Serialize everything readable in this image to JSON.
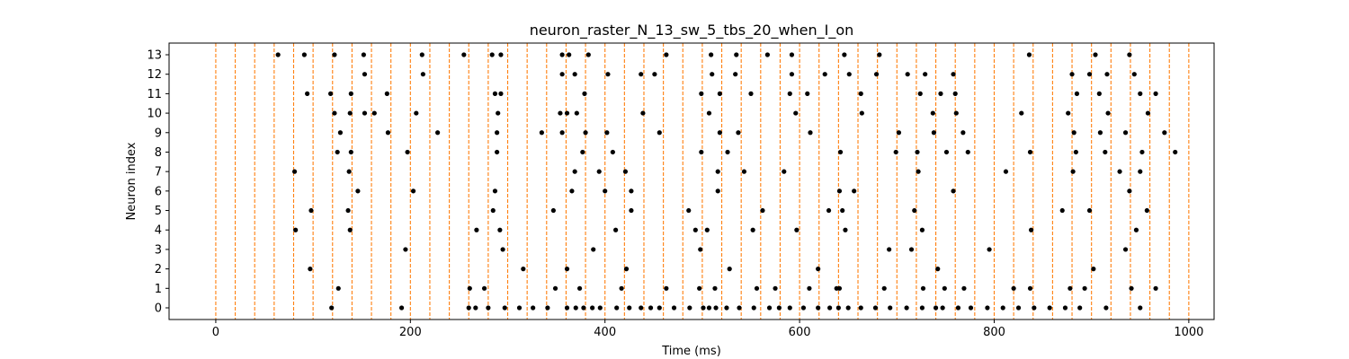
{
  "chart_data": {
    "type": "scatter",
    "title": "neuron_raster_N_13_sw_5_tbs_20_when_I_on",
    "xlabel": "Time (ms)",
    "ylabel": "Neuron index",
    "xlim": [
      -48,
      1026
    ],
    "ylim": [
      -0.6,
      13.6
    ],
    "xticks": [
      0,
      200,
      400,
      600,
      800,
      1000
    ],
    "yticks": [
      0,
      1,
      2,
      3,
      4,
      5,
      6,
      7,
      8,
      9,
      10,
      11,
      12,
      13
    ],
    "grid": false,
    "marker_color": "#000000",
    "vline_color": "#ff7f0e",
    "vlines": [
      0,
      20,
      40,
      60,
      80,
      100,
      120,
      140,
      160,
      180,
      200,
      220,
      240,
      260,
      280,
      300,
      320,
      340,
      360,
      380,
      400,
      420,
      440,
      460,
      480,
      500,
      520,
      540,
      560,
      580,
      600,
      620,
      640,
      660,
      680,
      700,
      720,
      740,
      760,
      780,
      800,
      820,
      840,
      860,
      880,
      900,
      920,
      940,
      960,
      980,
      1000
    ],
    "spikes": [
      {
        "neuron": 0,
        "times": [
          119,
          191,
          260,
          267,
          280,
          297,
          312,
          326,
          341,
          361,
          370,
          378,
          387,
          395,
          412,
          425,
          437,
          447,
          456,
          471,
          487,
          501,
          507,
          514,
          525,
          538,
          553,
          569,
          579,
          590,
          604,
          619,
          631,
          640,
          650,
          663,
          678,
          693,
          710,
          726,
          740,
          747,
          763,
          776,
          793,
          809,
          825,
          841,
          857,
          873,
          888,
          915,
          950
        ]
      },
      {
        "neuron": 1,
        "times": [
          126,
          261,
          276,
          349,
          374,
          417,
          463,
          497,
          513,
          556,
          575,
          610,
          638,
          641,
          687,
          727,
          749,
          769,
          820,
          837,
          878,
          893,
          941,
          966
        ]
      },
      {
        "neuron": 2,
        "times": [
          97,
          316,
          361,
          422,
          528,
          619,
          742,
          902
        ]
      },
      {
        "neuron": 3,
        "times": [
          195,
          295,
          388,
          498,
          692,
          715,
          795,
          935
        ]
      },
      {
        "neuron": 4,
        "times": [
          82,
          138,
          268,
          292,
          411,
          493,
          505,
          552,
          597,
          647,
          726,
          838,
          946
        ]
      },
      {
        "neuron": 5,
        "times": [
          98,
          136,
          285,
          347,
          427,
          486,
          562,
          630,
          644,
          718,
          870,
          898,
          957
        ]
      },
      {
        "neuron": 6,
        "times": [
          146,
          203,
          287,
          366,
          400,
          427,
          516,
          641,
          656,
          758,
          939
        ]
      },
      {
        "neuron": 7,
        "times": [
          81,
          137,
          369,
          394,
          421,
          516,
          543,
          584,
          722,
          812,
          881,
          929,
          950
        ]
      },
      {
        "neuron": 8,
        "times": [
          125,
          139,
          197,
          289,
          377,
          408,
          499,
          526,
          642,
          699,
          721,
          751,
          773,
          837,
          884,
          914,
          952,
          986
        ]
      },
      {
        "neuron": 9,
        "times": [
          128,
          177,
          228,
          289,
          335,
          356,
          380,
          402,
          456,
          518,
          537,
          611,
          702,
          738,
          768,
          882,
          909,
          935,
          975
        ]
      },
      {
        "neuron": 10,
        "times": [
          122,
          138,
          153,
          163,
          206,
          290,
          354,
          361,
          371,
          439,
          507,
          596,
          664,
          737,
          761,
          828,
          876,
          917,
          958
        ]
      },
      {
        "neuron": 11,
        "times": [
          94,
          118,
          139,
          176,
          287,
          293,
          379,
          499,
          518,
          550,
          590,
          608,
          663,
          724,
          745,
          760,
          885,
          908,
          950,
          966
        ]
      },
      {
        "neuron": 12,
        "times": [
          153,
          213,
          356,
          369,
          403,
          437,
          451,
          510,
          534,
          592,
          626,
          651,
          679,
          711,
          729,
          758,
          880,
          898,
          916,
          944
        ]
      },
      {
        "neuron": 13,
        "times": [
          64,
          91,
          122,
          152,
          212,
          255,
          284,
          293,
          356,
          363,
          383,
          463,
          509,
          535,
          567,
          592,
          646,
          682,
          836,
          904,
          939
        ]
      }
    ]
  }
}
